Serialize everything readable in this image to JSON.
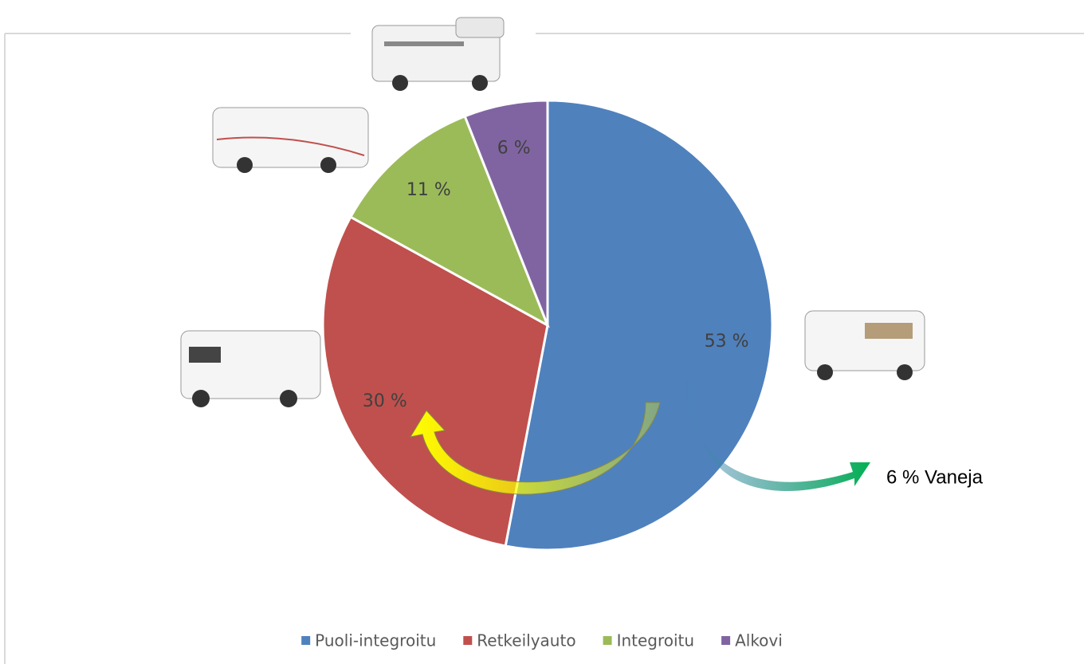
{
  "chart_data": {
    "type": "pie",
    "categories": [
      "Puoli-integroitu",
      "Retkeilyauto",
      "Integroitu",
      "Alkovi"
    ],
    "values": [
      53,
      30,
      11,
      6
    ],
    "value_labels": [
      "53 %",
      "30 %",
      "11 %",
      "6 %"
    ],
    "colors": [
      "#4f81bd",
      "#c0504d",
      "#9bbb59",
      "#8064a2"
    ],
    "legend": "bottom",
    "annotation": "6 % Vaneja"
  }
}
